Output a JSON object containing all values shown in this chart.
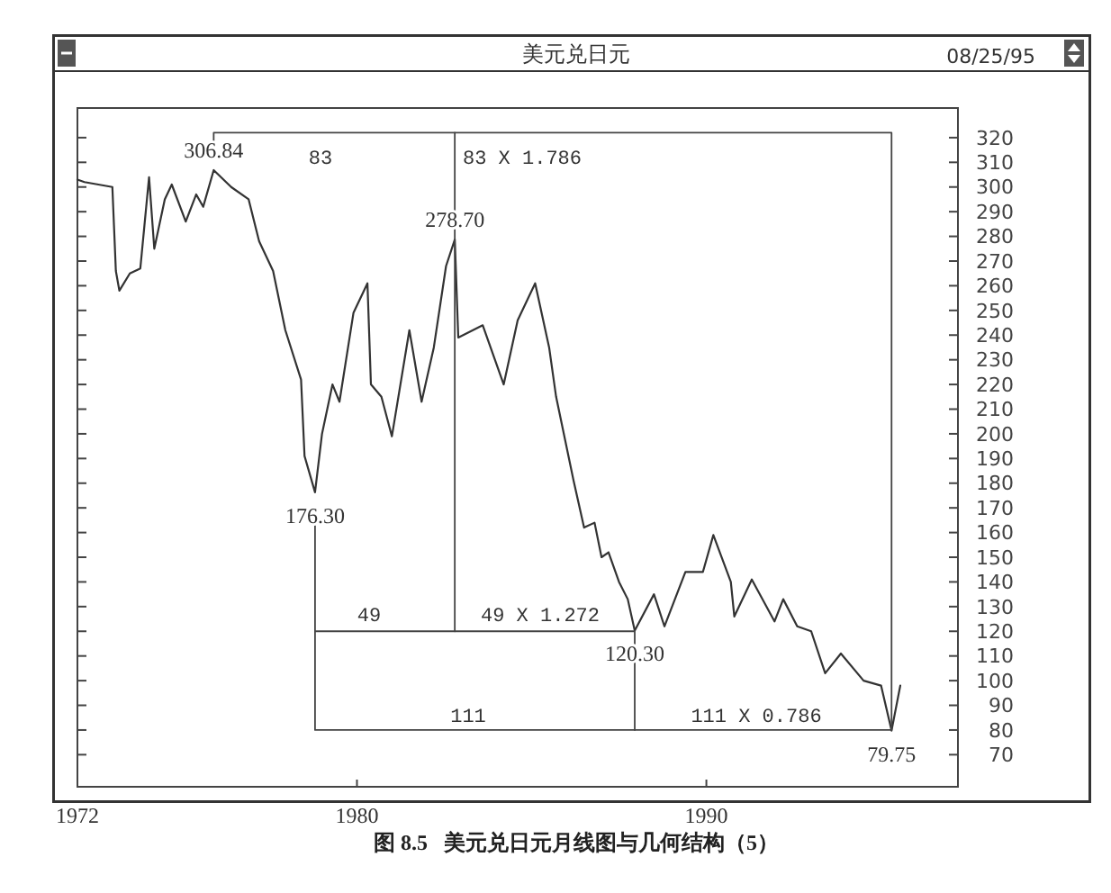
{
  "chart_data": {
    "type": "line",
    "title": "美元兑日元",
    "subtitle": "08/25/95",
    "xlim": [
      1972,
      1997.2
    ],
    "xticks": [
      1972,
      1980,
      1990
    ],
    "ylim": [
      57,
      332
    ],
    "yticks": [
      70,
      80,
      90,
      100,
      110,
      120,
      130,
      140,
      150,
      160,
      170,
      180,
      190,
      200,
      210,
      220,
      230,
      240,
      250,
      260,
      270,
      280,
      290,
      300,
      310,
      320
    ],
    "series": [
      {
        "color": "#333333",
        "x": [
          1972.0,
          1972.2,
          1972.6,
          1973.0,
          1973.1,
          1973.2,
          1973.5,
          1973.8,
          1974.05,
          1974.2,
          1974.5,
          1974.7,
          1975.1,
          1975.4,
          1975.6,
          1975.9,
          1976.4,
          1976.9,
          1977.2,
          1977.6,
          1977.95,
          1978.4,
          1978.5,
          1978.8,
          1979.0,
          1979.3,
          1979.5,
          1979.9,
          1980.3,
          1980.4,
          1980.7,
          1981.0,
          1981.5,
          1981.85,
          1982.2,
          1982.55,
          1982.8,
          1982.9,
          1983.6,
          1984.2,
          1984.6,
          1985.1,
          1985.5,
          1985.7,
          1986.2,
          1986.5,
          1986.8,
          1987.0,
          1987.2,
          1987.5,
          1987.75,
          1987.95,
          1988.5,
          1988.8,
          1989.4,
          1989.9,
          1990.2,
          1990.7,
          1990.8,
          1991.3,
          1991.95,
          1992.2,
          1992.6,
          1993.0,
          1993.4,
          1993.85,
          1994.5,
          1995.0,
          1995.3,
          1995.55
        ],
        "values": [
          303,
          302,
          301,
          300,
          266,
          258,
          265,
          267,
          304,
          275,
          295,
          301,
          286,
          297,
          292,
          306.84,
          300,
          295,
          278,
          266,
          242,
          222,
          191,
          176.3,
          200,
          220,
          213,
          249,
          261,
          220,
          215,
          199,
          242,
          213,
          235,
          268,
          278.7,
          239,
          244,
          220,
          246,
          261,
          235,
          215,
          181,
          162,
          164,
          150,
          152,
          140,
          133,
          120.3,
          135,
          122,
          144,
          144,
          159,
          140,
          126,
          141,
          124,
          133,
          122,
          120,
          103,
          111,
          100,
          98,
          79.75,
          98
        ],
        "value_labels": [
          null,
          null,
          null,
          null,
          null,
          null,
          null,
          null,
          null,
          null,
          null,
          null,
          null,
          null,
          null,
          "306.84",
          null,
          null,
          null,
          null,
          null,
          null,
          null,
          "176.30",
          null,
          null,
          null,
          null,
          null,
          null,
          null,
          null,
          null,
          null,
          null,
          null,
          "278.70",
          null,
          null,
          null,
          null,
          null,
          null,
          null,
          null,
          null,
          null,
          null,
          null,
          null,
          null,
          "120.30",
          null,
          null,
          null,
          null,
          null,
          null,
          null,
          null,
          null,
          null,
          null,
          null,
          null,
          null,
          null,
          null,
          "79.75",
          null
        ]
      },
      {
        "color": "#444444",
        "x": [
          1975.9,
          1975.9,
          1995.3,
          1995.3,
          1978.8,
          1978.8
        ],
        "values": [
          312,
          322,
          322,
          80,
          80,
          170
        ]
      },
      {
        "color": "#444444",
        "x": [
          1982.8,
          1982.8
        ],
        "values": [
          322,
          120
        ]
      },
      {
        "color": "#444444",
        "x": [
          1978.8,
          1987.95,
          1987.95
        ],
        "values": [
          120,
          120,
          80
        ]
      }
    ],
    "annotations": [
      "83",
      "83 X 1.786",
      "49",
      "49 X 1.272",
      "111",
      "111 X 0.786",
      "图 8.5   美元兑日元月线图与几何结构（5）"
    ]
  }
}
